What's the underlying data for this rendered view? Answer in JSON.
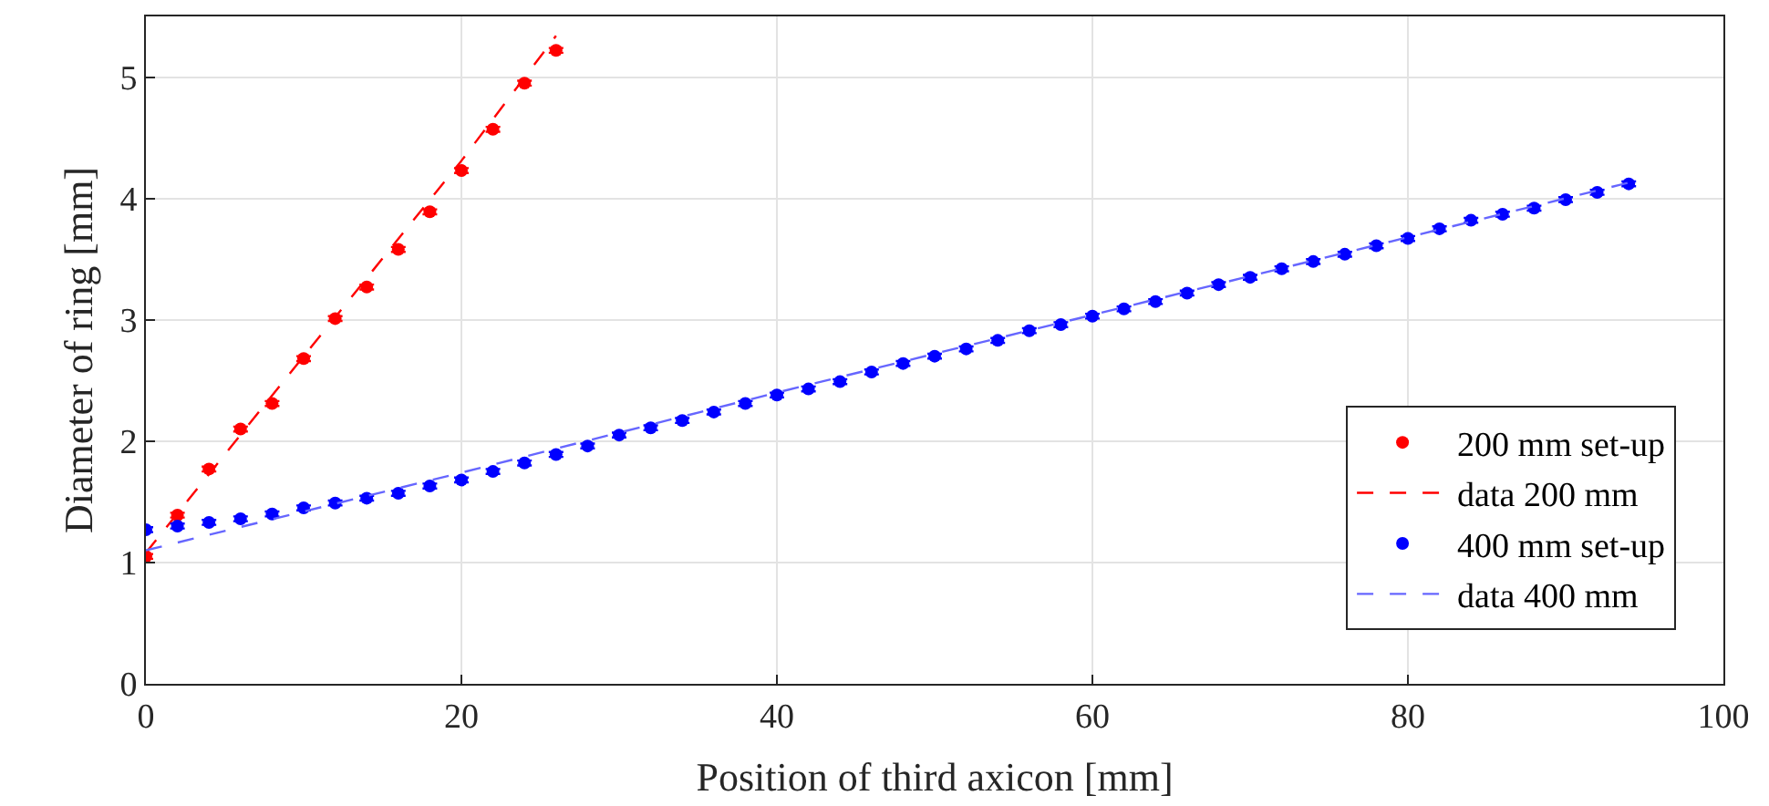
{
  "chart_data": {
    "type": "scatter",
    "xlabel": "Position of third axicon [mm]",
    "ylabel": "Diameter of ring [mm]",
    "xlim": [
      0,
      100
    ],
    "xticks": [
      0,
      20,
      40,
      60,
      80,
      100
    ],
    "ylim": [
      0,
      5.5
    ],
    "yticks": [
      0,
      1,
      2,
      3,
      4,
      5
    ],
    "grid": true,
    "legend": "bottom right",
    "series": [
      {
        "name": "200 mm set-up",
        "marker": "circle",
        "color": "#ff0000",
        "x": [
          0,
          2,
          4,
          6,
          8,
          10,
          12,
          14,
          16,
          18,
          20,
          22,
          24,
          26
        ],
        "values": [
          1.05,
          1.39,
          1.77,
          2.1,
          2.31,
          2.68,
          3.01,
          3.27,
          3.58,
          3.89,
          4.23,
          4.57,
          4.95,
          5.22
        ],
        "errors": [
          0.02,
          0.02,
          0.02,
          0.02,
          0.02,
          0.02,
          0.02,
          0.02,
          0.02,
          0.02,
          0.02,
          0.02,
          0.02,
          0.02
        ]
      },
      {
        "name": "data 200 mm",
        "type": "line",
        "line_style": "dashed",
        "color": "#ff0000",
        "x": [
          0,
          10,
          20,
          26
        ],
        "values": [
          1.08,
          2.7,
          4.31,
          5.34
        ]
      },
      {
        "name": "400 mm set-up",
        "marker": "circle",
        "color": "#0000ff",
        "x": [
          0,
          2,
          4,
          6,
          8,
          10,
          12,
          14,
          16,
          18,
          20,
          22,
          24,
          26,
          28,
          30,
          32,
          34,
          36,
          38,
          40,
          42,
          44,
          46,
          48,
          50,
          52,
          54,
          56,
          58,
          60,
          62,
          64,
          66,
          68,
          70,
          72,
          74,
          76,
          78,
          80,
          82,
          84,
          86,
          88,
          90,
          92,
          94
        ],
        "values": [
          1.27,
          1.3,
          1.33,
          1.36,
          1.4,
          1.45,
          1.49,
          1.53,
          1.57,
          1.63,
          1.68,
          1.75,
          1.82,
          1.89,
          1.96,
          2.05,
          2.11,
          2.17,
          2.24,
          2.31,
          2.38,
          2.43,
          2.49,
          2.57,
          2.64,
          2.7,
          2.76,
          2.83,
          2.91,
          2.96,
          3.03,
          3.09,
          3.15,
          3.22,
          3.29,
          3.35,
          3.42,
          3.48,
          3.54,
          3.61,
          3.67,
          3.75,
          3.82,
          3.87,
          3.92,
          3.99,
          4.05,
          4.12
        ],
        "errors": [
          0.02,
          0.02,
          0.02,
          0.02,
          0.02,
          0.02,
          0.02,
          0.02,
          0.02,
          0.02,
          0.02,
          0.02,
          0.02,
          0.02,
          0.02,
          0.02,
          0.02,
          0.02,
          0.02,
          0.02,
          0.02,
          0.02,
          0.02,
          0.02,
          0.02,
          0.02,
          0.02,
          0.02,
          0.02,
          0.02,
          0.02,
          0.02,
          0.02,
          0.02,
          0.02,
          0.02,
          0.02,
          0.02,
          0.02,
          0.02,
          0.02,
          0.02,
          0.02,
          0.02,
          0.02,
          0.02,
          0.02,
          0.02
        ]
      },
      {
        "name": "data 400 mm",
        "type": "line",
        "line_style": "dashed",
        "color": "#6666ff",
        "x": [
          0,
          20,
          40,
          60,
          80,
          94
        ],
        "values": [
          1.1,
          1.74,
          2.4,
          3.04,
          3.68,
          4.13
        ]
      }
    ]
  }
}
